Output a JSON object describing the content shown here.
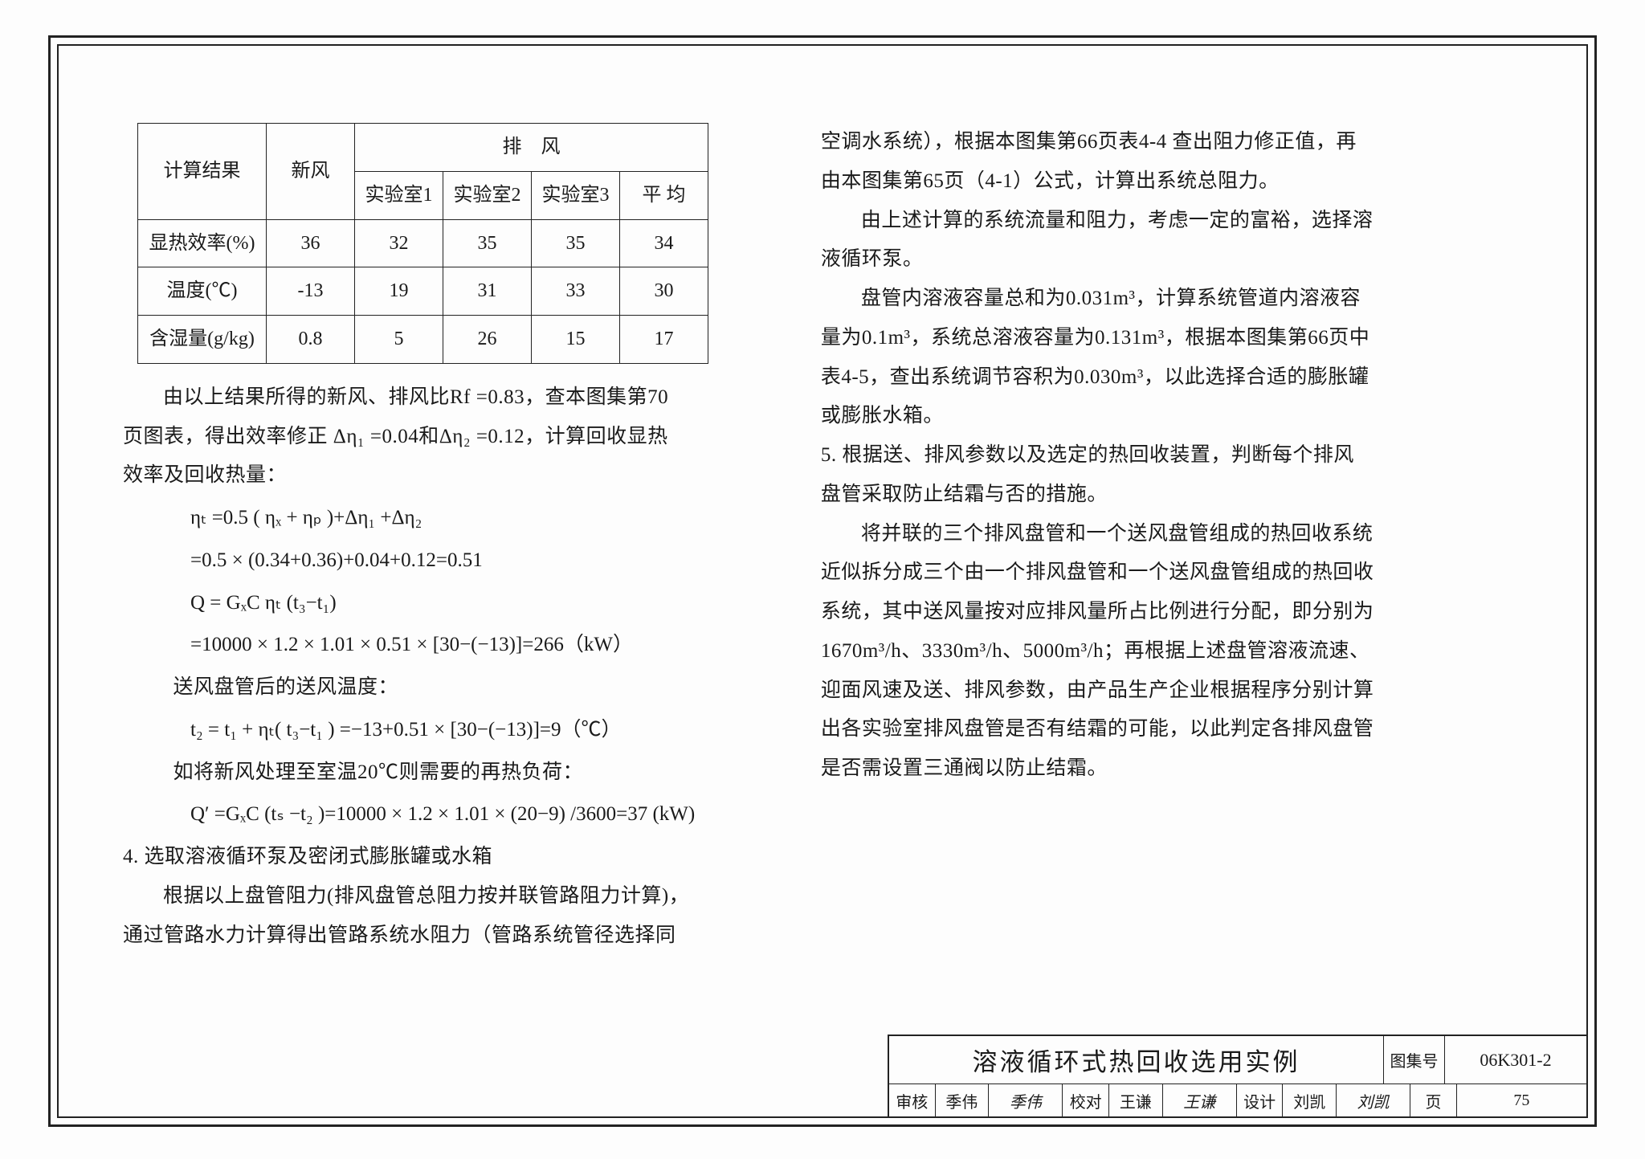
{
  "table": {
    "header": {
      "result": "计算结果",
      "xinfeng": "新风",
      "paifeng": "排　风",
      "lab1": "实验室1",
      "lab2": "实验室2",
      "lab3": "实验室3",
      "avg": "平 均"
    },
    "rows": [
      {
        "label": "显热效率(%)",
        "v": [
          "36",
          "32",
          "35",
          "35",
          "34"
        ]
      },
      {
        "label": "温度(℃)",
        "v": [
          "-13",
          "19",
          "31",
          "33",
          "30"
        ]
      },
      {
        "label": "含湿量(g/kg)",
        "v": [
          "0.8",
          "5",
          "26",
          "15",
          "17"
        ]
      }
    ]
  },
  "left": {
    "p1a": "由以上结果所得的新风、排风比Rf =0.83，查本图集第70",
    "p1b": "页图表，得出效率修正 Δη₁ =0.04和Δη₂ =0.12，计算回收显热",
    "p1c": "效率及回收热量：",
    "f1": "ηₜ =0.5 ( ηₓ + ηₚ )+Δη₁ +Δη₂",
    "f2": "   =0.5 × (0.34+0.36)+0.04+0.12=0.51",
    "f3": "Q  =  GₓC ηₜ (t₃−t₁)",
    "f4": "   =10000 × 1.2 × 1.01 × 0.51 × [30−(−13)]=266（kW）",
    "p2": "送风盘管后的送风温度：",
    "f5": "t₂ = t₁ + ηₜ( t₃−t₁ ) =−13+0.51 × [30−(−13)]=9（℃）",
    "p3": "如将新风处理至室温20℃则需要的再热负荷：",
    "f6": "Q′ =GₓC (tₛ −t₂ )=10000 × 1.2 × 1.01 × (20−9) /3600=37 (kW)",
    "h4": "4.  选取溶液循环泵及密闭式膨胀罐或水箱",
    "p4a": "根据以上盘管阻力(排风盘管总阻力按并联管路阻力计算)，",
    "p4b": "通过管路水力计算得出管路系统水阻力（管路系统管径选择同"
  },
  "right": {
    "p1a": "空调水系统），根据本图集第66页表4-4 查出阻力修正值，再",
    "p1b": "由本图集第65页（4-1）公式，计算出系统总阻力。",
    "p2a": "由上述计算的系统流量和阻力，考虑一定的富裕，选择溶",
    "p2b": "液循环泵。",
    "p3a": "盘管内溶液容量总和为0.031m³，计算系统管道内溶液容",
    "p3b": "量为0.1m³，系统总溶液容量为0.131m³，根据本图集第66页中",
    "p3c": "表4-5，查出系统调节容积为0.030m³，以此选择合适的膨胀罐",
    "p3d": "或膨胀水箱。",
    "h5": "5.  根据送、排风参数以及选定的热回收装置，判断每个排风",
    "h5b": "盘管采取防止结霜与否的措施。",
    "p5a": "将并联的三个排风盘管和一个送风盘管组成的热回收系统",
    "p5b": "近似拆分成三个由一个排风盘管和一个送风盘管组成的热回收",
    "p5c": "系统，其中送风量按对应排风量所占比例进行分配，即分别为",
    "p5d": "1670m³/h、3330m³/h、5000m³/h；再根据上述盘管溶液流速、",
    "p5e": "迎面风速及送、排风参数，由产品生产企业根据程序分别计算",
    "p5f": "出各实验室排风盘管是否有结霜的可能，以此判定各排风盘管",
    "p5g": "是否需设置三通阀以防止结霜。"
  },
  "titleblock": {
    "title": "溶液循环式热回收选用实例",
    "atlas_label": "图集号",
    "atlas_code": "06K301-2",
    "audit": "审核",
    "audit_name": "季伟",
    "audit_sig": "季伟",
    "check": "校对",
    "check_name": "王谦",
    "check_sig": "王谦",
    "design": "设计",
    "design_name": "刘凯",
    "design_sig": "刘凯",
    "page_label": "页",
    "page_num": "75"
  }
}
